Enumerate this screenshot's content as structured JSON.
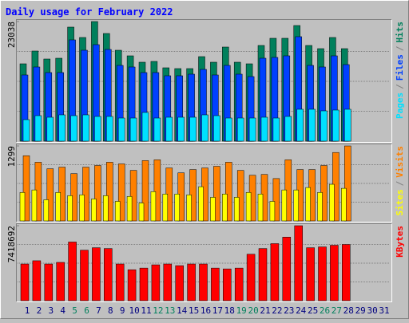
{
  "chart_data": [
    {
      "type": "bar",
      "title": "Daily usage for February 2022",
      "ylim": [
        0,
        23038
      ],
      "yticks": [
        23038
      ],
      "grid": true,
      "legend_separator": "/",
      "series": [
        {
          "name": "Hits",
          "color": "#00805c",
          "values": [
            14899,
            17357,
            15821,
            15974,
            21965,
            19968,
            23038,
            20736,
            17510,
            16435,
            15206,
            15360,
            14131,
            13978,
            13978,
            16282,
            15206,
            18125,
            15206,
            14899,
            18432,
            19814,
            19814,
            22272,
            18432,
            17818,
            19968,
            17818,
            null,
            null,
            null
          ]
        },
        {
          "name": "Files",
          "color": "#0040ff",
          "values": [
            12749,
            14285,
            13210,
            13210,
            19507,
            17510,
            18586,
            17664,
            14592,
            14285,
            13210,
            13210,
            12595,
            12595,
            12902,
            13824,
            12749,
            14592,
            12902,
            12442,
            15974,
            16128,
            16435,
            20122,
            14592,
            14285,
            16435,
            14746,
            null,
            null,
            null
          ]
        },
        {
          "name": "Pages",
          "color": "#00e0ff",
          "values": [
            4147,
            4915,
            4608,
            5069,
            4915,
            5069,
            4762,
            4762,
            4454,
            4454,
            5530,
            4454,
            4608,
            4608,
            4608,
            5069,
            4915,
            4454,
            4454,
            4454,
            4608,
            4454,
            4762,
            6144,
            6144,
            5837,
            5990,
            6144,
            null,
            null,
            null
          ]
        }
      ]
    },
    {
      "type": "bar",
      "ylim": [
        0,
        1299
      ],
      "yticks": [
        1299
      ],
      "grid": true,
      "legend_separator": "/",
      "series": [
        {
          "name": "Visits",
          "color": "#ff8000",
          "values": [
            1130,
            1017,
            904,
            932,
            819,
            932,
            960,
            1017,
            988,
            875,
            1045,
            1059,
            918,
            833,
            890,
            918,
            946,
            1017,
            875,
            791,
            805,
            734,
            1059,
            890,
            890,
            960,
            1186,
            1299,
            null,
            null,
            null
          ]
        },
        {
          "name": "Sites",
          "color": "#ffff00",
          "values": [
            494,
            537,
            367,
            494,
            438,
            452,
            381,
            438,
            339,
            424,
            311,
            508,
            466,
            466,
            452,
            593,
            409,
            466,
            409,
            494,
            466,
            339,
            537,
            537,
            579,
            494,
            635,
            565,
            null,
            null,
            null
          ]
        }
      ]
    },
    {
      "type": "bar",
      "ylim": [
        0,
        7418692
      ],
      "yticks": [
        7418692
      ],
      "grid": true,
      "categories": [
        "1",
        "2",
        "3",
        "4",
        "5",
        "6",
        "7",
        "8",
        "9",
        "10",
        "11",
        "12",
        "13",
        "14",
        "15",
        "16",
        "17",
        "18",
        "19",
        "20",
        "21",
        "22",
        "23",
        "24",
        "25",
        "26",
        "27",
        "28",
        "29",
        "30",
        "31"
      ],
      "category_colors": [
        "#000080",
        "#000080",
        "#000080",
        "#000080",
        "#00805c",
        "#00805c",
        "#000080",
        "#000080",
        "#000080",
        "#000080",
        "#000080",
        "#00805c",
        "#00805c",
        "#000080",
        "#000080",
        "#000080",
        "#000080",
        "#000080",
        "#00805c",
        "#00805c",
        "#000080",
        "#000080",
        "#000080",
        "#000080",
        "#000080",
        "#00805c",
        "#00805c",
        "#000080",
        "#000080",
        "#000080",
        "#000080"
      ],
      "series": [
        {
          "name": "KBytes",
          "color": "#ff0000",
          "values": [
            3628710,
            3951262,
            3628710,
            3789986,
            5805936,
            4999556,
            5241470,
            5160832,
            3628710,
            3064244,
            3225520,
            3548072,
            3628710,
            3467434,
            3628710,
            3628710,
            3225520,
            3144882,
            3225520,
            4596366,
            5160832,
            5644660,
            6289764,
            7418692,
            5241470,
            5322108,
            5483384,
            5564022,
            null,
            null,
            null
          ]
        }
      ]
    }
  ]
}
